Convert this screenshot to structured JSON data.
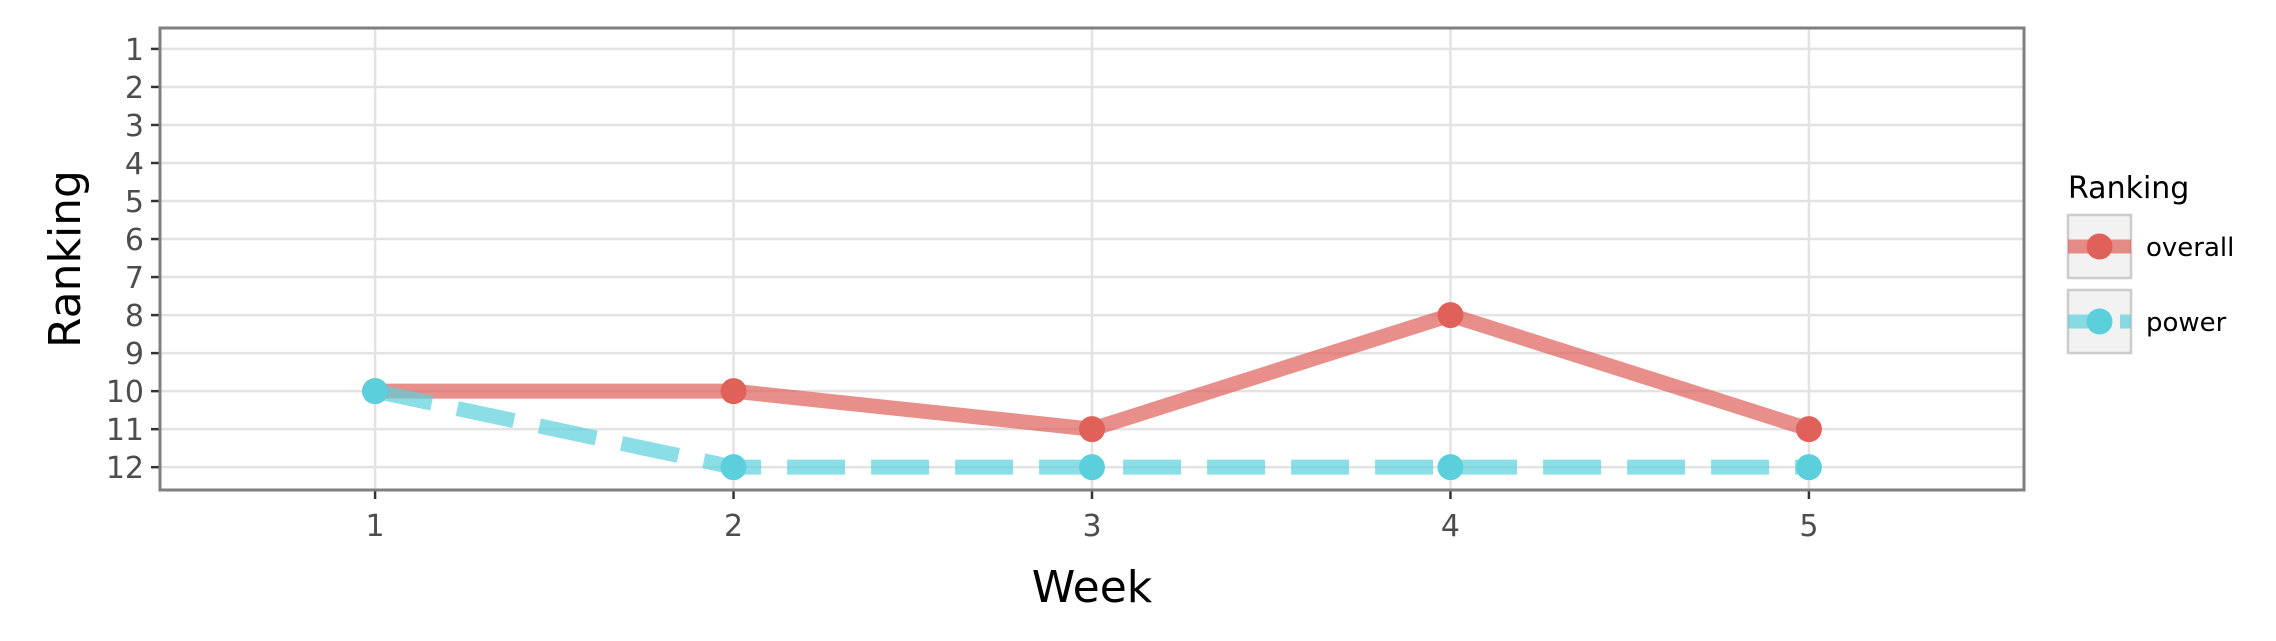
{
  "chart_data": {
    "type": "line",
    "xlabel": "Week",
    "ylabel": "Ranking",
    "x": [
      1,
      2,
      3,
      4,
      5
    ],
    "xlim": [
      0.4,
      5.6
    ],
    "ylim": [
      12.6,
      0.45
    ],
    "y_reversed": true,
    "x_ticks": [
      1,
      2,
      3,
      4,
      5
    ],
    "y_ticks": [
      1,
      2,
      3,
      4,
      5,
      6,
      7,
      8,
      9,
      10,
      11,
      12
    ],
    "grid": true,
    "legend": {
      "title": "Ranking",
      "position": "right"
    },
    "series": [
      {
        "name": "overall",
        "values": [
          10,
          10,
          11,
          8,
          11
        ],
        "color": "#e0605a",
        "line_style": "solid"
      },
      {
        "name": "power",
        "values": [
          10,
          12,
          12,
          12,
          12
        ],
        "color": "#5bd0dc",
        "line_style": "dashed"
      }
    ]
  }
}
